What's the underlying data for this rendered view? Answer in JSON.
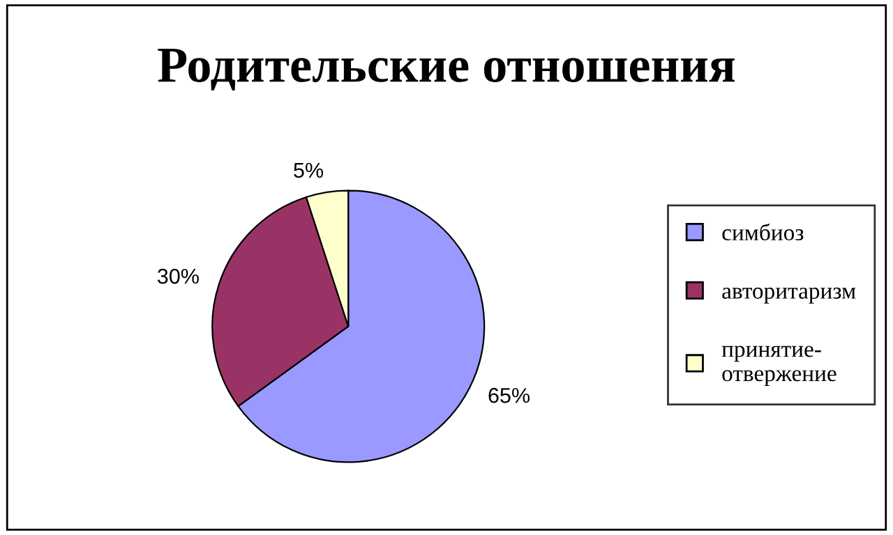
{
  "chart_data": {
    "type": "pie",
    "title": "Родительские отношения",
    "categories": [
      "симбиоз",
      "авторитаризм",
      "принятие-\nотвержение"
    ],
    "values": [
      65,
      30,
      5
    ],
    "colors": [
      "#9999ff",
      "#993366",
      "#ffffcc"
    ],
    "value_labels": [
      "65%",
      "30%",
      "5%"
    ],
    "legend": "right"
  }
}
